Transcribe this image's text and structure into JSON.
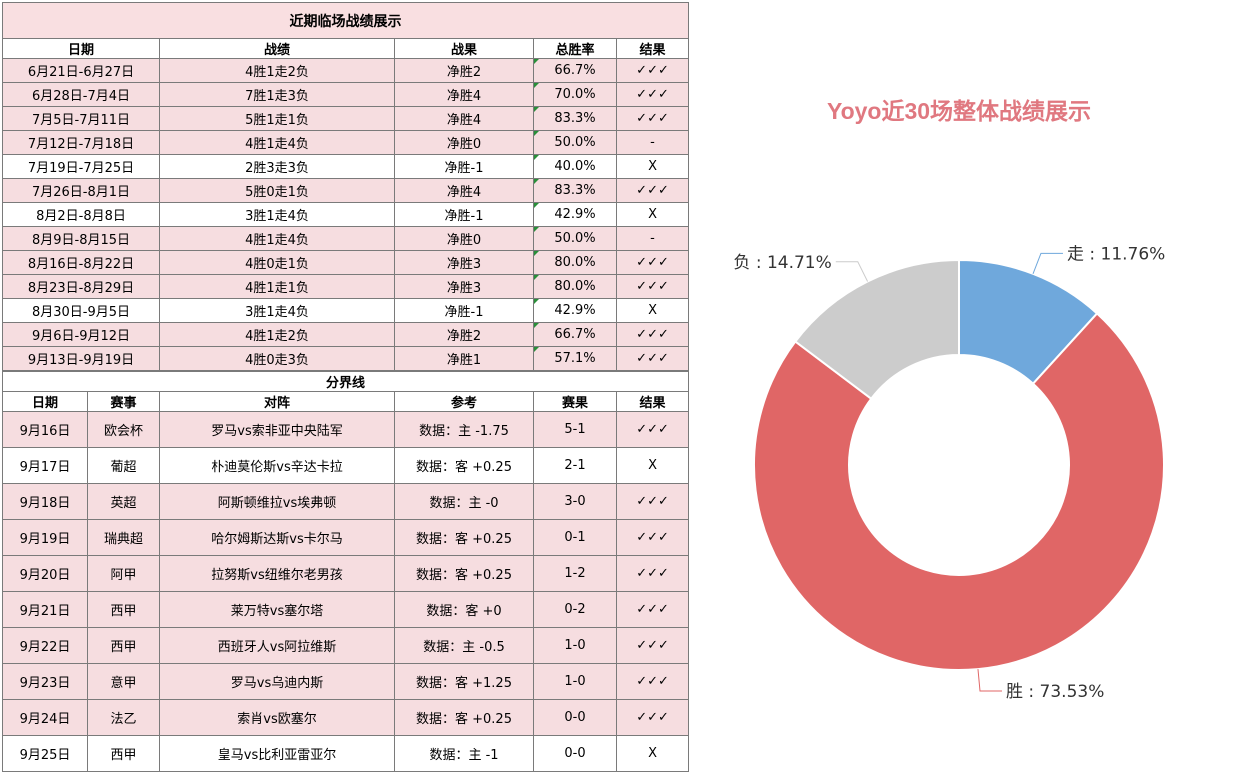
{
  "table1": {
    "title": "近期临场战绩展示",
    "headers": [
      "日期",
      "战绩",
      "战果",
      "总胜率",
      "结果"
    ],
    "rows": [
      {
        "date": "6月21日-6月27日",
        "record": "4胜1走2负",
        "net": "净胜2",
        "rate": "66.7%",
        "result": "✓✓✓",
        "shade": "pink"
      },
      {
        "date": "6月28日-7月4日",
        "record": "7胜1走3负",
        "net": "净胜4",
        "rate": "70.0%",
        "result": "✓✓✓",
        "shade": "pink"
      },
      {
        "date": "7月5日-7月11日",
        "record": "5胜1走1负",
        "net": "净胜4",
        "rate": "83.3%",
        "result": "✓✓✓",
        "shade": "pink"
      },
      {
        "date": "7月12日-7月18日",
        "record": "4胜1走4负",
        "net": "净胜0",
        "rate": "50.0%",
        "result": "-",
        "shade": "pink"
      },
      {
        "date": "7月19日-7月25日",
        "record": "2胜3走3负",
        "net": "净胜-1",
        "rate": "40.0%",
        "result": "X",
        "shade": "white"
      },
      {
        "date": "7月26日-8月1日",
        "record": "5胜0走1负",
        "net": "净胜4",
        "rate": "83.3%",
        "result": "✓✓✓",
        "shade": "pink"
      },
      {
        "date": "8月2日-8月8日",
        "record": "3胜1走4负",
        "net": "净胜-1",
        "rate": "42.9%",
        "result": "X",
        "shade": "white"
      },
      {
        "date": "8月9日-8月15日",
        "record": "4胜1走4负",
        "net": "净胜0",
        "rate": "50.0%",
        "result": "-",
        "shade": "pink"
      },
      {
        "date": "8月16日-8月22日",
        "record": "4胜0走1负",
        "net": "净胜3",
        "rate": "80.0%",
        "result": "✓✓✓",
        "shade": "pink"
      },
      {
        "date": "8月23日-8月29日",
        "record": "4胜1走1负",
        "net": "净胜3",
        "rate": "80.0%",
        "result": "✓✓✓",
        "shade": "pink"
      },
      {
        "date": "8月30日-9月5日",
        "record": "3胜1走4负",
        "net": "净胜-1",
        "rate": "42.9%",
        "result": "X",
        "shade": "white"
      },
      {
        "date": "9月6日-9月12日",
        "record": "4胜1走2负",
        "net": "净胜2",
        "rate": "66.7%",
        "result": "✓✓✓",
        "shade": "pink"
      },
      {
        "date": "9月13日-9月19日",
        "record": "4胜0走3负",
        "net": "净胜1",
        "rate": "57.1%",
        "result": "✓✓✓",
        "shade": "pink"
      }
    ]
  },
  "divider_label": "分界线",
  "table2": {
    "headers": [
      "日期",
      "赛事",
      "对阵",
      "参考",
      "赛果",
      "结果"
    ],
    "rows": [
      {
        "date": "9月16日",
        "league": "欧会杯",
        "match": "罗马vs索非亚中央陆军",
        "ref": "数据：主 -1.75",
        "score": "5-1",
        "result": "✓✓✓",
        "shade": "pink"
      },
      {
        "date": "9月17日",
        "league": "葡超",
        "match": "朴迪莫伦斯vs辛达卡拉",
        "ref": "数据：客 +0.25",
        "score": "2-1",
        "result": "X",
        "shade": "white"
      },
      {
        "date": "9月18日",
        "league": "英超",
        "match": "阿斯顿维拉vs埃弗顿",
        "ref": "数据：主 -0",
        "score": "3-0",
        "result": "✓✓✓",
        "shade": "pink"
      },
      {
        "date": "9月19日",
        "league": "瑞典超",
        "match": "哈尔姆斯达斯vs卡尔马",
        "ref": "数据：客 +0.25",
        "score": "0-1",
        "result": "✓✓✓",
        "shade": "pink"
      },
      {
        "date": "9月20日",
        "league": "阿甲",
        "match": "拉努斯vs纽维尔老男孩",
        "ref": "数据：客 +0.25",
        "score": "1-2",
        "result": "✓✓✓",
        "shade": "pink"
      },
      {
        "date": "9月21日",
        "league": "西甲",
        "match": "莱万特vs塞尔塔",
        "ref": "数据：客 +0",
        "score": "0-2",
        "result": "✓✓✓",
        "shade": "pink"
      },
      {
        "date": "9月22日",
        "league": "西甲",
        "match": "西班牙人vs阿拉维斯",
        "ref": "数据：主 -0.5",
        "score": "1-0",
        "result": "✓✓✓",
        "shade": "pink"
      },
      {
        "date": "9月23日",
        "league": "意甲",
        "match": "罗马vs乌迪内斯",
        "ref": "数据：客 +1.25",
        "score": "1-0",
        "result": "✓✓✓",
        "shade": "pink"
      },
      {
        "date": "9月24日",
        "league": "法乙",
        "match": "索肖vs欧塞尔",
        "ref": "数据：客 +0.25",
        "score": "0-0",
        "result": "✓✓✓",
        "shade": "pink"
      },
      {
        "date": "9月25日",
        "league": "西甲",
        "match": "皇马vs比利亚雷亚尔",
        "ref": "数据：主 -1",
        "score": "0-0",
        "result": "X",
        "shade": "white"
      }
    ]
  },
  "chart_data": {
    "type": "pie",
    "title": "Yoyo近30场整体战绩展示",
    "categories": [
      "走",
      "胜",
      "负"
    ],
    "values": [
      11.76,
      73.53,
      14.71
    ],
    "labels": [
      "走 : 11.76%",
      "胜 : 73.53%",
      "负 : 14.71%"
    ],
    "colors": [
      "#6fa8dc",
      "#e06666",
      "#cccccc"
    ],
    "donut": true,
    "start_angle_deg": 0,
    "direction": "clockwise"
  }
}
